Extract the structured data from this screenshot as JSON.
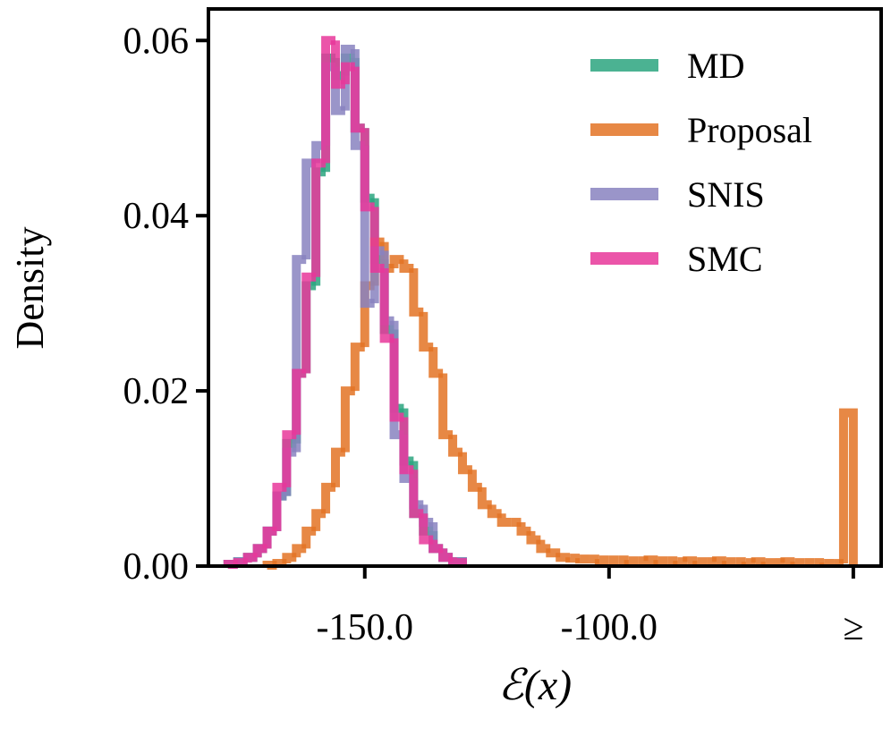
{
  "chart_data": {
    "type": "histogram",
    "xlabel": "ℰ(x)",
    "ylabel": "Density",
    "xlim": [
      -182,
      -44.3
    ],
    "ylim": [
      0,
      0.0636
    ],
    "xticks": [
      {
        "value": -150,
        "label": "-150.0"
      },
      {
        "value": -100,
        "label": "-100.0"
      },
      {
        "value": -50,
        "label": "≥"
      }
    ],
    "yticks": [
      {
        "value": 0,
        "label": "0.00"
      },
      0.02,
      0.04,
      0.06
    ],
    "legend": "upper right",
    "series": [
      {
        "name": "MD",
        "color": "#2ca57f",
        "bins": [
          -178,
          -176,
          -174,
          -172,
          -170,
          -168,
          -166,
          -164,
          -162,
          -160,
          -158,
          -156,
          -154,
          -152,
          -150,
          -148,
          -146,
          -144,
          -142,
          -140,
          -138,
          -136,
          -134,
          -132,
          -130
        ],
        "values": [
          0.0002,
          0.0005,
          0.001,
          0.002,
          0.004,
          0.008,
          0.014,
          0.022,
          0.032,
          0.045,
          0.058,
          0.056,
          0.058,
          0.05,
          0.042,
          0.035,
          0.027,
          0.018,
          0.012,
          0.006,
          0.004,
          0.002,
          0.001,
          0.0005
        ]
      },
      {
        "name": "Proposal",
        "color": "#e37324",
        "bins": [
          -170,
          -168,
          -166,
          -164,
          -162,
          -160,
          -158,
          -156,
          -154,
          -152,
          -150,
          -148,
          -146,
          -144,
          -142,
          -140,
          -138,
          -136,
          -134,
          -132,
          -130,
          -128,
          -126,
          -124,
          -122,
          -120,
          -118,
          -116,
          -114,
          -112,
          -110,
          -108,
          -106,
          -104,
          -102,
          -100,
          -98,
          -96,
          -94,
          -92,
          -90,
          -88,
          -86,
          -84,
          -82,
          -80,
          -78,
          -76,
          -74,
          -72,
          -70,
          -68,
          -66,
          -64,
          -62,
          -60,
          -58,
          -56,
          -54,
          -52,
          -50
        ],
        "values": [
          0.0001,
          0.0003,
          0.001,
          0.002,
          0.004,
          0.006,
          0.009,
          0.013,
          0.02,
          0.025,
          0.032,
          0.037,
          0.034,
          0.035,
          0.034,
          0.029,
          0.025,
          0.022,
          0.015,
          0.013,
          0.011,
          0.009,
          0.007,
          0.006,
          0.005,
          0.005,
          0.004,
          0.003,
          0.002,
          0.0015,
          0.001,
          0.0009,
          0.0008,
          0.0008,
          0.0007,
          0.0007,
          0.0007,
          0.0006,
          0.0006,
          0.0007,
          0.0006,
          0.0006,
          0.0005,
          0.0006,
          0.0005,
          0.0005,
          0.0006,
          0.0005,
          0.0005,
          0.0004,
          0.0005,
          0.0004,
          0.0004,
          0.0005,
          0.0004,
          0.0004,
          0.0004,
          0.0003,
          0.0003,
          0.0175
        ]
      },
      {
        "name": "SNIS",
        "color": "#8882c0",
        "bins": [
          -178,
          -176,
          -174,
          -172,
          -170,
          -168,
          -166,
          -164,
          -162,
          -160,
          -158,
          -156,
          -154,
          -152,
          -150,
          -148,
          -146,
          -144,
          -142,
          -140,
          -138,
          -136,
          -134,
          -132,
          -130
        ],
        "values": [
          0.0002,
          0.0005,
          0.001,
          0.002,
          0.004,
          0.008,
          0.013,
          0.035,
          0.046,
          0.048,
          0.057,
          0.052,
          0.059,
          0.048,
          0.03,
          0.036,
          0.028,
          0.015,
          0.01,
          0.007,
          0.005,
          0.002,
          0.001,
          0.0005
        ]
      },
      {
        "name": "SMC",
        "color": "#e8379a",
        "bins": [
          -178,
          -176,
          -174,
          -172,
          -170,
          -168,
          -166,
          -164,
          -162,
          -160,
          -158,
          -156,
          -154,
          -152,
          -150,
          -148,
          -146,
          -144,
          -142,
          -140,
          -138,
          -136,
          -134,
          -132,
          -130
        ],
        "values": [
          0.0002,
          0.0004,
          0.001,
          0.002,
          0.004,
          0.009,
          0.015,
          0.022,
          0.033,
          0.046,
          0.06,
          0.055,
          0.057,
          0.05,
          0.041,
          0.034,
          0.026,
          0.017,
          0.011,
          0.006,
          0.003,
          0.002,
          0.001,
          0.0004
        ]
      }
    ]
  }
}
